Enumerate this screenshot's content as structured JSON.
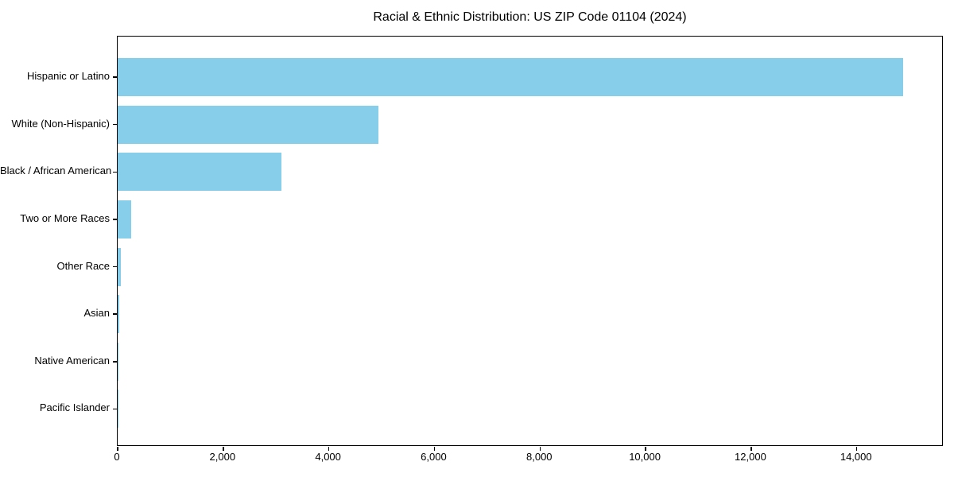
{
  "chart_data": {
    "type": "bar",
    "orientation": "horizontal",
    "title": "Racial & Ethnic Distribution: US ZIP Code 01104 (2024)",
    "categories": [
      "Hispanic or Latino",
      "White (Non-Hispanic)",
      "Black / African American",
      "Two or More Races",
      "Other Race",
      "Asian",
      "Native American",
      "Pacific Islander"
    ],
    "values": [
      14870,
      4940,
      3100,
      260,
      60,
      30,
      12,
      3
    ],
    "bar_color": "#87CEEB",
    "spine_color": "#000000",
    "text_color": "#000000",
    "background_color": "#ffffff",
    "xlabel": "",
    "ylabel": "",
    "xlim": [
      0,
      15600
    ],
    "xticks": [
      {
        "value": 0,
        "label": "0"
      },
      {
        "value": 2000,
        "label": "2,000"
      },
      {
        "value": 4000,
        "label": "4,000"
      },
      {
        "value": 6000,
        "label": "6,000"
      },
      {
        "value": 8000,
        "label": "8,000"
      },
      {
        "value": 10000,
        "label": "10,000"
      },
      {
        "value": 12000,
        "label": "12,000"
      },
      {
        "value": 14000,
        "label": "14,000"
      }
    ],
    "grid": false,
    "legend": null
  }
}
